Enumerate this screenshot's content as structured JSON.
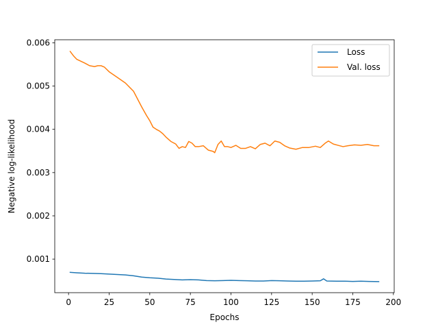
{
  "chart_data": {
    "type": "line",
    "title": "",
    "xlabel": "Epochs",
    "ylabel": "Negative log-likelihood",
    "xlim": [
      -8.5,
      200.5
    ],
    "ylim": [
      0.000225,
      0.00607
    ],
    "xticks": [
      0,
      25,
      50,
      75,
      100,
      125,
      150,
      175,
      200
    ],
    "xtick_labels": [
      "0",
      "25",
      "50",
      "75",
      "100",
      "125",
      "150",
      "175",
      "200"
    ],
    "yticks": [
      0.001,
      0.002,
      0.003,
      0.004,
      0.005,
      0.006
    ],
    "ytick_labels": [
      "0.001",
      "0.002",
      "0.003",
      "0.004",
      "0.005",
      "0.006"
    ],
    "grid": false,
    "legend_position": "top-right",
    "series": [
      {
        "name": "Loss",
        "color": "#1f77b4",
        "points": [
          [
            1,
            0.000695
          ],
          [
            5,
            0.000685
          ],
          [
            10,
            0.000675
          ],
          [
            15,
            0.00067
          ],
          [
            20,
            0.000665
          ],
          [
            25,
            0.000655
          ],
          [
            30,
            0.000645
          ],
          [
            35,
            0.000635
          ],
          [
            40,
            0.000615
          ],
          [
            45,
            0.000585
          ],
          [
            50,
            0.00057
          ],
          [
            55,
            0.00056
          ],
          [
            60,
            0.00054
          ],
          [
            65,
            0.00053
          ],
          [
            70,
            0.00052
          ],
          [
            75,
            0.000525
          ],
          [
            80,
            0.00052
          ],
          [
            85,
            0.000505
          ],
          [
            90,
            0.0005
          ],
          [
            95,
            0.000505
          ],
          [
            100,
            0.00051
          ],
          [
            105,
            0.000505
          ],
          [
            110,
            0.0005
          ],
          [
            115,
            0.000495
          ],
          [
            120,
            0.000495
          ],
          [
            125,
            0.000505
          ],
          [
            130,
            0.0005
          ],
          [
            135,
            0.000495
          ],
          [
            140,
            0.00049
          ],
          [
            145,
            0.00049
          ],
          [
            150,
            0.000495
          ],
          [
            155,
            0.0005
          ],
          [
            157,
            0.000545
          ],
          [
            159,
            0.000495
          ],
          [
            165,
            0.00049
          ],
          [
            170,
            0.00049
          ],
          [
            175,
            0.000485
          ],
          [
            180,
            0.00049
          ],
          [
            185,
            0.000485
          ],
          [
            191,
            0.00048
          ]
        ]
      },
      {
        "name": "Val. loss",
        "color": "#ff7f0e",
        "points": [
          [
            1,
            0.0058
          ],
          [
            3,
            0.0057
          ],
          [
            5,
            0.00562
          ],
          [
            10,
            0.00553
          ],
          [
            13,
            0.00547
          ],
          [
            16,
            0.00545
          ],
          [
            18,
            0.00547
          ],
          [
            20,
            0.00547
          ],
          [
            22,
            0.00544
          ],
          [
            25,
            0.00533
          ],
          [
            30,
            0.0052
          ],
          [
            35,
            0.00507
          ],
          [
            40,
            0.00488
          ],
          [
            45,
            0.00452
          ],
          [
            48,
            0.00432
          ],
          [
            50,
            0.0042
          ],
          [
            52,
            0.00405
          ],
          [
            54,
            0.004
          ],
          [
            56,
            0.00396
          ],
          [
            58,
            0.0039
          ],
          [
            60,
            0.00382
          ],
          [
            63,
            0.00372
          ],
          [
            66,
            0.00366
          ],
          [
            68,
            0.00356
          ],
          [
            70,
            0.0036
          ],
          [
            72,
            0.00358
          ],
          [
            74,
            0.00372
          ],
          [
            76,
            0.00368
          ],
          [
            78,
            0.0036
          ],
          [
            80,
            0.0036
          ],
          [
            83,
            0.00362
          ],
          [
            86,
            0.00352
          ],
          [
            89,
            0.00349
          ],
          [
            90,
            0.00346
          ],
          [
            92,
            0.00365
          ],
          [
            94,
            0.00373
          ],
          [
            96,
            0.0036
          ],
          [
            98,
            0.0036
          ],
          [
            100,
            0.00358
          ],
          [
            103,
            0.00363
          ],
          [
            106,
            0.00356
          ],
          [
            109,
            0.00356
          ],
          [
            112,
            0.0036
          ],
          [
            115,
            0.00355
          ],
          [
            118,
            0.00365
          ],
          [
            121,
            0.00368
          ],
          [
            124,
            0.00362
          ],
          [
            127,
            0.00373
          ],
          [
            130,
            0.0037
          ],
          [
            133,
            0.00362
          ],
          [
            136,
            0.00357
          ],
          [
            140,
            0.00354
          ],
          [
            144,
            0.00358
          ],
          [
            148,
            0.00358
          ],
          [
            152,
            0.00361
          ],
          [
            155,
            0.00358
          ],
          [
            158,
            0.00368
          ],
          [
            160,
            0.00373
          ],
          [
            163,
            0.00366
          ],
          [
            166,
            0.00363
          ],
          [
            169,
            0.0036
          ],
          [
            172,
            0.00362
          ],
          [
            176,
            0.00364
          ],
          [
            180,
            0.00363
          ],
          [
            184,
            0.00365
          ],
          [
            188,
            0.00362
          ],
          [
            191,
            0.00362
          ]
        ]
      }
    ]
  }
}
